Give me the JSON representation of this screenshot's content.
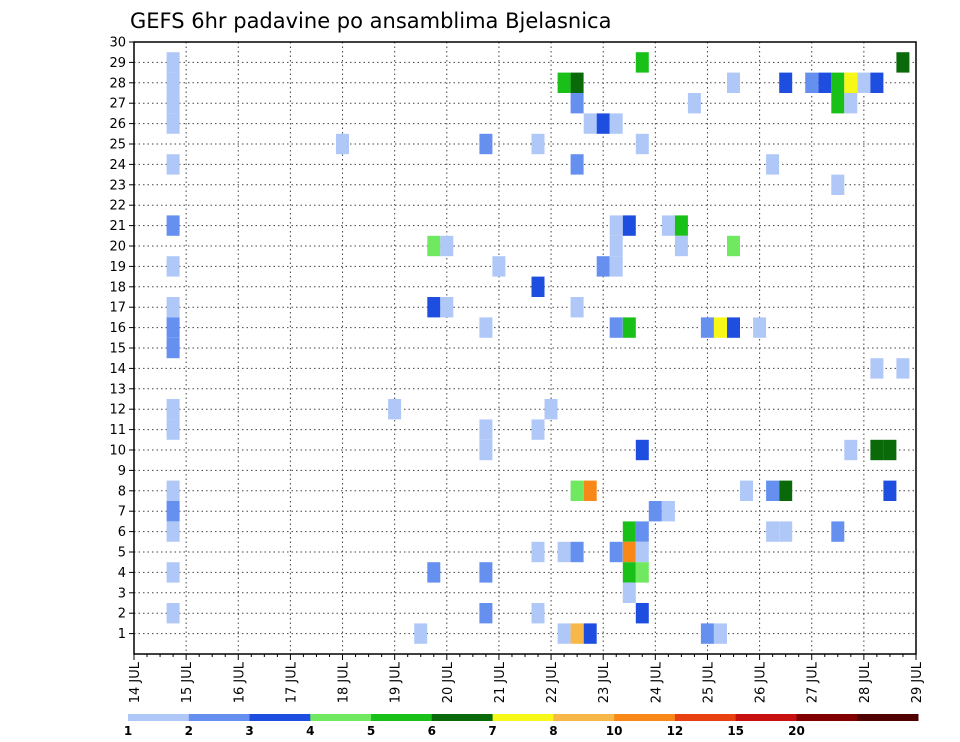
{
  "chart_data": {
    "type": "heatmap",
    "title": "GEFS 6hr padavine po ansamblima Bjelasnica",
    "xlabel": "",
    "ylabel": "",
    "x_unit": "days (July, 6-hourly steps)",
    "xlim": [
      14,
      29
    ],
    "ylim": [
      0,
      30
    ],
    "x_ticks": [
      {
        "value": 14,
        "label": "14 JUL"
      },
      {
        "value": 15,
        "label": "15 JUL"
      },
      {
        "value": 16,
        "label": "16 JUL"
      },
      {
        "value": 17,
        "label": "17 JUL"
      },
      {
        "value": 18,
        "label": "18 JUL"
      },
      {
        "value": 19,
        "label": "19 JUL"
      },
      {
        "value": 20,
        "label": "20 JUL"
      },
      {
        "value": 21,
        "label": "21 JUL"
      },
      {
        "value": 22,
        "label": "22 JUL"
      },
      {
        "value": 23,
        "label": "23 JUL"
      },
      {
        "value": 24,
        "label": "24 JUL"
      },
      {
        "value": 25,
        "label": "25 JUL"
      },
      {
        "value": 26,
        "label": "26 JUL"
      },
      {
        "value": 27,
        "label": "27 JUL"
      },
      {
        "value": 28,
        "label": "28 JUL"
      },
      {
        "value": 29,
        "label": "29 JUL"
      }
    ],
    "y_ticks": [
      1,
      2,
      3,
      4,
      5,
      6,
      7,
      8,
      9,
      10,
      11,
      12,
      13,
      14,
      15,
      16,
      17,
      18,
      19,
      20,
      21,
      22,
      23,
      24,
      25,
      26,
      27,
      28,
      29,
      30
    ],
    "grid": true,
    "colorbar": {
      "levels": [
        "1",
        "2",
        "3",
        "4",
        "5",
        "6",
        "7",
        "8",
        "10",
        "12",
        "15",
        "20"
      ],
      "colors": [
        "#b0c8f8",
        "#6690f0",
        "#1e4ee0",
        "#70e860",
        "#18c018",
        "#0a6a0a",
        "#f8f818",
        "#f8b848",
        "#f88818",
        "#e84010",
        "#c81010",
        "#800000",
        "#500000"
      ]
    },
    "cells": [
      {
        "x": 14.75,
        "m": 29,
        "c": 0
      },
      {
        "x": 14.75,
        "m": 28,
        "c": 0
      },
      {
        "x": 14.75,
        "m": 27,
        "c": 0
      },
      {
        "x": 14.75,
        "m": 26,
        "c": 0
      },
      {
        "x": 14.75,
        "m": 24,
        "c": 0
      },
      {
        "x": 14.75,
        "m": 21,
        "c": 1
      },
      {
        "x": 14.75,
        "m": 19,
        "c": 0
      },
      {
        "x": 14.75,
        "m": 17,
        "c": 0
      },
      {
        "x": 14.75,
        "m": 16,
        "c": 1
      },
      {
        "x": 14.75,
        "m": 15,
        "c": 1
      },
      {
        "x": 14.75,
        "m": 12,
        "c": 0
      },
      {
        "x": 14.75,
        "m": 11,
        "c": 0
      },
      {
        "x": 14.75,
        "m": 8,
        "c": 0
      },
      {
        "x": 14.75,
        "m": 7,
        "c": 1
      },
      {
        "x": 14.75,
        "m": 6,
        "c": 0
      },
      {
        "x": 14.75,
        "m": 4,
        "c": 0
      },
      {
        "x": 14.75,
        "m": 2,
        "c": 0
      },
      {
        "x": 18.0,
        "m": 25,
        "c": 0
      },
      {
        "x": 19.0,
        "m": 12,
        "c": 0
      },
      {
        "x": 19.5,
        "m": 1,
        "c": 0
      },
      {
        "x": 19.75,
        "m": 20,
        "c": 3
      },
      {
        "x": 19.75,
        "m": 17,
        "c": 2
      },
      {
        "x": 19.75,
        "m": 4,
        "c": 1
      },
      {
        "x": 20.0,
        "m": 20,
        "c": 0
      },
      {
        "x": 20.0,
        "m": 17,
        "c": 0
      },
      {
        "x": 20.75,
        "m": 25,
        "c": 1
      },
      {
        "x": 20.75,
        "m": 16,
        "c": 0
      },
      {
        "x": 20.75,
        "m": 11,
        "c": 0
      },
      {
        "x": 20.75,
        "m": 10,
        "c": 0
      },
      {
        "x": 20.75,
        "m": 4,
        "c": 1
      },
      {
        "x": 20.75,
        "m": 2,
        "c": 1
      },
      {
        "x": 21.0,
        "m": 19,
        "c": 0
      },
      {
        "x": 21.75,
        "m": 25,
        "c": 0
      },
      {
        "x": 21.75,
        "m": 18,
        "c": 2
      },
      {
        "x": 21.75,
        "m": 11,
        "c": 0
      },
      {
        "x": 21.75,
        "m": 5,
        "c": 0
      },
      {
        "x": 21.75,
        "m": 2,
        "c": 0
      },
      {
        "x": 22.0,
        "m": 12,
        "c": 0
      },
      {
        "x": 22.25,
        "m": 28,
        "c": 4
      },
      {
        "x": 22.25,
        "m": 5,
        "c": 0
      },
      {
        "x": 22.25,
        "m": 1,
        "c": 0
      },
      {
        "x": 22.5,
        "m": 28,
        "c": 5
      },
      {
        "x": 22.5,
        "m": 27,
        "c": 1
      },
      {
        "x": 22.5,
        "m": 24,
        "c": 1
      },
      {
        "x": 22.5,
        "m": 17,
        "c": 0
      },
      {
        "x": 22.5,
        "m": 8,
        "c": 3
      },
      {
        "x": 22.5,
        "m": 5,
        "c": 1
      },
      {
        "x": 22.5,
        "m": 1,
        "c": 7
      },
      {
        "x": 22.75,
        "m": 26,
        "c": 0
      },
      {
        "x": 22.75,
        "m": 8,
        "c": 8
      },
      {
        "x": 22.75,
        "m": 1,
        "c": 2
      },
      {
        "x": 23.0,
        "m": 26,
        "c": 2
      },
      {
        "x": 23.0,
        "m": 19,
        "c": 1
      },
      {
        "x": 23.25,
        "m": 26,
        "c": 0
      },
      {
        "x": 23.25,
        "m": 21,
        "c": 0
      },
      {
        "x": 23.25,
        "m": 20,
        "c": 0
      },
      {
        "x": 23.25,
        "m": 19,
        "c": 0
      },
      {
        "x": 23.25,
        "m": 16,
        "c": 1
      },
      {
        "x": 23.25,
        "m": 5,
        "c": 1
      },
      {
        "x": 23.5,
        "m": 21,
        "c": 2
      },
      {
        "x": 23.5,
        "m": 16,
        "c": 4
      },
      {
        "x": 23.5,
        "m": 6,
        "c": 4
      },
      {
        "x": 23.5,
        "m": 5,
        "c": 8
      },
      {
        "x": 23.5,
        "m": 4,
        "c": 4
      },
      {
        "x": 23.5,
        "m": 3,
        "c": 0
      },
      {
        "x": 23.75,
        "m": 29,
        "c": 4
      },
      {
        "x": 23.75,
        "m": 25,
        "c": 0
      },
      {
        "x": 23.75,
        "m": 10,
        "c": 2
      },
      {
        "x": 23.75,
        "m": 6,
        "c": 1
      },
      {
        "x": 23.75,
        "m": 5,
        "c": 0
      },
      {
        "x": 23.75,
        "m": 4,
        "c": 3
      },
      {
        "x": 23.75,
        "m": 2,
        "c": 2
      },
      {
        "x": 24.0,
        "m": 7,
        "c": 1
      },
      {
        "x": 24.25,
        "m": 21,
        "c": 0
      },
      {
        "x": 24.25,
        "m": 7,
        "c": 0
      },
      {
        "x": 24.5,
        "m": 21,
        "c": 4
      },
      {
        "x": 24.5,
        "m": 20,
        "c": 0
      },
      {
        "x": 24.75,
        "m": 27,
        "c": 0
      },
      {
        "x": 25.0,
        "m": 16,
        "c": 1
      },
      {
        "x": 25.0,
        "m": 1,
        "c": 1
      },
      {
        "x": 25.25,
        "m": 16,
        "c": 6
      },
      {
        "x": 25.25,
        "m": 1,
        "c": 0
      },
      {
        "x": 25.5,
        "m": 28,
        "c": 0
      },
      {
        "x": 25.5,
        "m": 20,
        "c": 3
      },
      {
        "x": 25.5,
        "m": 16,
        "c": 2
      },
      {
        "x": 25.75,
        "m": 8,
        "c": 0
      },
      {
        "x": 26.0,
        "m": 16,
        "c": 0
      },
      {
        "x": 26.25,
        "m": 24,
        "c": 0
      },
      {
        "x": 26.25,
        "m": 8,
        "c": 1
      },
      {
        "x": 26.25,
        "m": 6,
        "c": 0
      },
      {
        "x": 26.5,
        "m": 28,
        "c": 2
      },
      {
        "x": 26.5,
        "m": 8,
        "c": 5
      },
      {
        "x": 26.5,
        "m": 6,
        "c": 0
      },
      {
        "x": 27.0,
        "m": 28,
        "c": 1
      },
      {
        "x": 27.25,
        "m": 28,
        "c": 2
      },
      {
        "x": 27.5,
        "m": 28,
        "c": 4
      },
      {
        "x": 27.5,
        "m": 27,
        "c": 4
      },
      {
        "x": 27.5,
        "m": 23,
        "c": 0
      },
      {
        "x": 27.5,
        "m": 6,
        "c": 1
      },
      {
        "x": 27.75,
        "m": 28,
        "c": 6
      },
      {
        "x": 27.75,
        "m": 27,
        "c": 0
      },
      {
        "x": 27.75,
        "m": 10,
        "c": 0
      },
      {
        "x": 28.0,
        "m": 28,
        "c": 0
      },
      {
        "x": 28.25,
        "m": 28,
        "c": 2
      },
      {
        "x": 28.25,
        "m": 14,
        "c": 0
      },
      {
        "x": 28.25,
        "m": 10,
        "c": 5
      },
      {
        "x": 28.5,
        "m": 10,
        "c": 5
      },
      {
        "x": 28.5,
        "m": 8,
        "c": 2
      },
      {
        "x": 28.75,
        "m": 29,
        "c": 5
      },
      {
        "x": 28.75,
        "m": 14,
        "c": 0
      }
    ]
  }
}
